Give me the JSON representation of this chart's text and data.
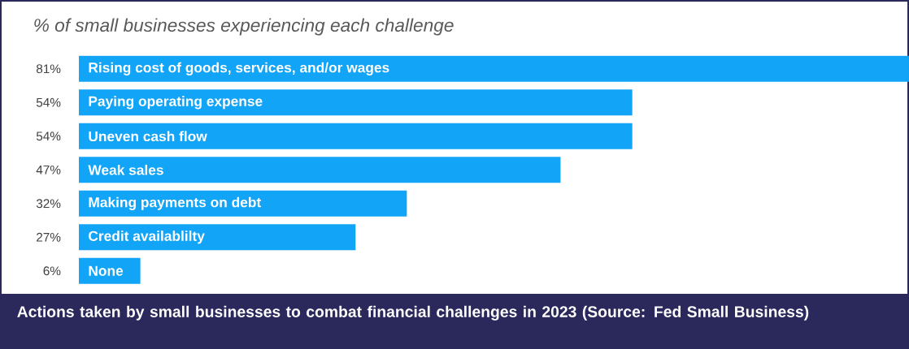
{
  "chart_data": {
    "type": "bar",
    "orientation": "horizontal",
    "title": "% of small businesses experiencing each challenge",
    "categories": [
      "Rising cost of goods, services, and/or wages",
      "Paying operating expense",
      "Uneven cash flow",
      "Weak sales",
      "Making payments on debt",
      "Credit availablilty",
      "None"
    ],
    "values": [
      81,
      54,
      54,
      47,
      32,
      27,
      6
    ],
    "value_labels": [
      "81%",
      "54%",
      "54%",
      "47%",
      "32%",
      "27%",
      "6%"
    ],
    "color": "#12a4f7",
    "annotations": [
      "Actions taken by small businesses to combat financial challenges in 2023 (Source: Fed Small Business)"
    ]
  }
}
